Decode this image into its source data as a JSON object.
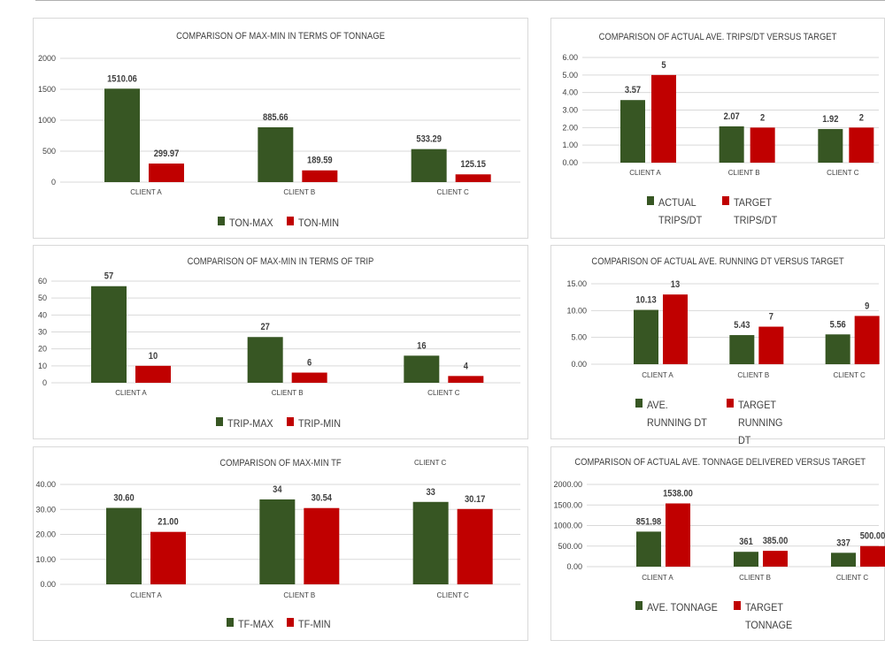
{
  "colors": {
    "max": "#375623",
    "min": "#c00000",
    "axis": "#404040",
    "grid": "#d9d9d9"
  },
  "stray_label": "CLIENT C",
  "chart_data": [
    {
      "type": "bar",
      "title": "COMPARISON OF MAX-MIN  IN TERMS OF TONNAGE",
      "categories": [
        "CLIENT A",
        "CLIENT B",
        "CLIENT C"
      ],
      "series": [
        {
          "name": "TON-MAX",
          "values": [
            1510.06,
            885.66,
            533.29
          ],
          "labels": [
            "1510.06",
            "885.66",
            "533.29"
          ]
        },
        {
          "name": "TON-MIN",
          "values": [
            299.97,
            189.59,
            125.15
          ],
          "labels": [
            "299.97",
            "189.59",
            "125.15"
          ]
        }
      ],
      "ylim": [
        0,
        2000
      ],
      "yticks": [
        "0",
        "500",
        "1000",
        "1500",
        "2000"
      ],
      "grid": true,
      "legend": "bottom"
    },
    {
      "type": "bar",
      "title": "COMPARISON OF MAX-MIN IN TERMS OF TRIP",
      "categories": [
        "CLIENT A",
        "CLIENT B",
        "CLIENT C"
      ],
      "series": [
        {
          "name": "TRIP-MAX",
          "values": [
            57,
            27,
            16
          ],
          "labels": [
            "57",
            "27",
            "16"
          ]
        },
        {
          "name": "TRIP-MIN",
          "values": [
            10,
            6,
            4
          ],
          "labels": [
            "10",
            "6",
            "4"
          ]
        }
      ],
      "ylim": [
        0,
        60
      ],
      "yticks": [
        "0",
        "10",
        "20",
        "30",
        "40",
        "50",
        "60"
      ],
      "grid": true,
      "legend": "bottom"
    },
    {
      "type": "bar",
      "title": "COMPARISON OF MAX-MIN TF",
      "categories": [
        "CLIENT A",
        "CLIENT B",
        "CLIENT C"
      ],
      "series": [
        {
          "name": "TF-MAX",
          "values": [
            30.6,
            34,
            33
          ],
          "labels": [
            "30.60",
            "34",
            "33"
          ]
        },
        {
          "name": "TF-MIN",
          "values": [
            21.0,
            30.54,
            30.17
          ],
          "labels": [
            "21.00",
            "30.54",
            "30.17"
          ]
        }
      ],
      "ylim": [
        0,
        40
      ],
      "yticks": [
        "0.00",
        "10.00",
        "20.00",
        "30.00",
        "40.00"
      ],
      "grid": true,
      "legend": "bottom"
    },
    {
      "type": "bar",
      "title": "COMPARISON OF ACTUAL AVE. TRIPS/DT VERSUS TARGET",
      "categories": [
        "CLIENT A",
        "CLIENT B",
        "CLIENT  C"
      ],
      "series": [
        {
          "name": "ACTUAL TRIPS/DT",
          "values": [
            3.57,
            2.07,
            1.92
          ],
          "labels": [
            "3.57",
            "2.07",
            "1.92"
          ]
        },
        {
          "name": "TARGET TRIPS/DT",
          "values": [
            5,
            2,
            2
          ],
          "labels": [
            "5",
            "2",
            "2"
          ]
        }
      ],
      "ylim": [
        0,
        6
      ],
      "yticks": [
        "0.00",
        "1.00",
        "2.00",
        "3.00",
        "4.00",
        "5.00",
        "6.00"
      ],
      "grid": true,
      "legend": "bottom"
    },
    {
      "type": "bar",
      "title": "COMPARISON OF ACTUAL AVE. RUNNING DT  VERSUS TARGET",
      "categories": [
        "CLIENT A",
        "CLIENT B",
        "CLIENT C"
      ],
      "series": [
        {
          "name": "AVE. RUNNING DT",
          "values": [
            10.13,
            5.43,
            5.56
          ],
          "labels": [
            "10.13",
            "5.43",
            "5.56"
          ]
        },
        {
          "name": "TARGET RUNNING DT",
          "values": [
            13,
            7,
            9
          ],
          "labels": [
            "13",
            "7",
            "9"
          ]
        }
      ],
      "ylim": [
        0,
        15
      ],
      "yticks": [
        "0.00",
        "5.00",
        "10.00",
        "15.00"
      ],
      "grid": true,
      "legend": "bottom"
    },
    {
      "type": "bar",
      "title": "COMPARISON OF ACTUAL AVE. TONNAGE DELIVERED VERSUS TARGET",
      "categories": [
        "CLIENT A",
        "CLIENT B",
        "CLIENT C"
      ],
      "series": [
        {
          "name": "AVE. TONNAGE",
          "values": [
            851.98,
            361,
            337
          ],
          "labels": [
            "851.98",
            "361",
            "337"
          ]
        },
        {
          "name": "TARGET TONNAGE",
          "values": [
            1538,
            385,
            500
          ],
          "labels": [
            "1538.00",
            "385.00",
            "500.00"
          ]
        }
      ],
      "ylim": [
        0,
        2000
      ],
      "yticks": [
        "0.00",
        "500.00",
        "1000.00",
        "1500.00",
        "2000.00"
      ],
      "grid": true,
      "legend": "bottom"
    }
  ]
}
